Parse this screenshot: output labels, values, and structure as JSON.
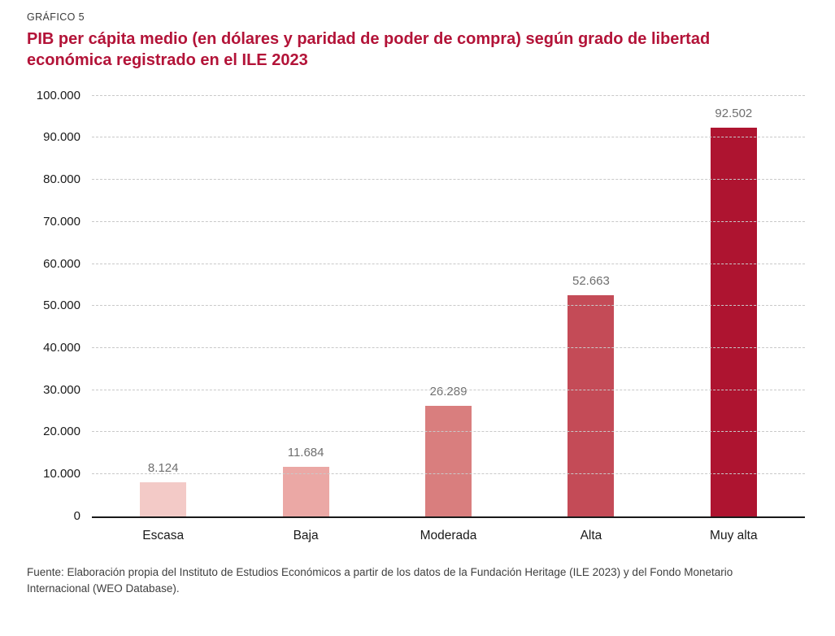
{
  "header": {
    "kicker": "GRÁFICO 5",
    "title": "PIB per cápita medio (en dólares y paridad de poder de compra) según grado de libertad económica registrado en el ILE 2023"
  },
  "chart_data": {
    "type": "bar",
    "title": "PIB per cápita medio (en dólares y paridad de poder de compra) según grado de libertad económica registrado en el ILE 2023",
    "categories": [
      "Escasa",
      "Baja",
      "Moderada",
      "Alta",
      "Muy alta"
    ],
    "values": [
      8124,
      11684,
      26289,
      52663,
      92502
    ],
    "value_labels": [
      "8.124",
      "11.684",
      "26.289",
      "52.663",
      "92.502"
    ],
    "bar_colors": [
      "#f3cac7",
      "#eba8a5",
      "#d97e7e",
      "#c44b57",
      "#ae1430"
    ],
    "xlabel": "",
    "ylabel": "",
    "ylim": [
      0,
      100000
    ],
    "y_ticks": [
      0,
      10000,
      20000,
      30000,
      40000,
      50000,
      60000,
      70000,
      80000,
      90000,
      100000
    ],
    "y_tick_labels": [
      "0",
      "10.000",
      "20.000",
      "30.000",
      "40.000",
      "50.000",
      "60.000",
      "70.000",
      "80.000",
      "90.000",
      "100.000"
    ],
    "grid": "horizontal-dashed",
    "legend_position": "none"
  },
  "footer": {
    "source": "Fuente: Elaboración propia del Instituto de Estudios Económicos a partir de los datos de la Fundación Heritage (ILE 2023) y del Fondo Monetario Internacional (WEO Database)."
  },
  "colors": {
    "title_accent": "#b31338",
    "axis_line": "#1a1a1a",
    "gridline": "#c9c9c9",
    "value_label_text": "#6f6f6f",
    "source_text": "#3f3f3f"
  }
}
